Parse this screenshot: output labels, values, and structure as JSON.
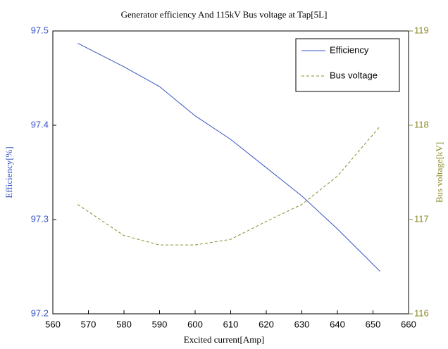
{
  "chart_data": {
    "type": "line",
    "title": "Generator efficiency And 115kV Bus voltage at Tap[5L]",
    "x_label": "Excited current[Amp]",
    "y_label": "Efficiency[%]",
    "y2_label": "Bus voltage[kV]",
    "x": [
      567,
      580,
      590,
      600,
      610,
      620,
      630,
      640,
      652
    ],
    "series": [
      {
        "name": "Efficiency",
        "color": "#3b55c4",
        "values": [
          97.487,
          97.462,
          97.441,
          97.41,
          97.385,
          97.355,
          97.325,
          97.29,
          97.245
        ]
      },
      {
        "name": "Bus voltage",
        "color": "#8a8a2a",
        "axis": "y2",
        "values": [
          117.16,
          116.83,
          116.73,
          116.73,
          116.79,
          116.98,
          117.16,
          117.46,
          117.99
        ]
      }
    ],
    "xlim": [
      560,
      660
    ],
    "xticks": [
      560,
      570,
      580,
      590,
      600,
      610,
      620,
      630,
      640,
      650,
      660
    ],
    "ylim": [
      97.2,
      97.5
    ],
    "yticks": [
      97.2,
      97.3,
      97.4,
      97.5
    ],
    "y2lim": [
      116,
      119
    ],
    "y2ticks": [
      116,
      117,
      118,
      119
    ],
    "legend": "upper right"
  }
}
